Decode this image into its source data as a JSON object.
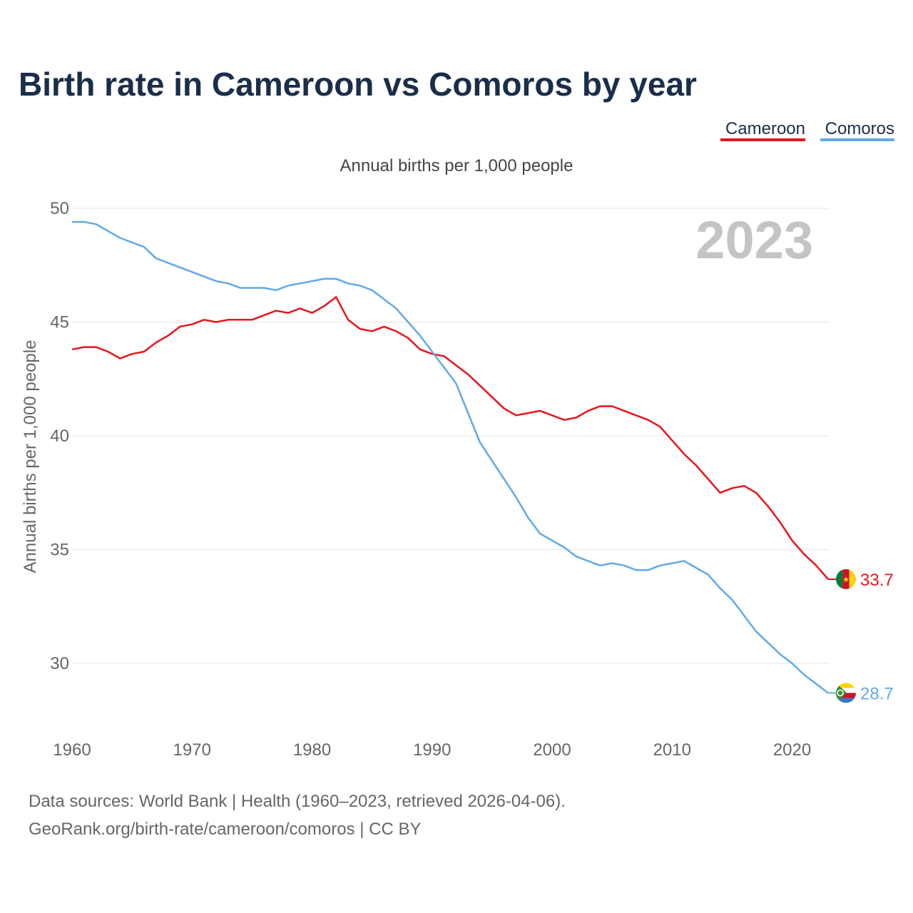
{
  "chart_data": {
    "type": "line",
    "title": "Birth rate in Cameroon vs Comoros by year",
    "subtitle": "Annual births per 1,000 people",
    "ylabel": "Annual births per 1,000 people",
    "xlabel": "",
    "year_label": "2023",
    "xlim": [
      1960,
      2023
    ],
    "ylim": [
      27.5,
      50
    ],
    "x_ticks": [
      "1960",
      "1970",
      "1980",
      "1990",
      "2000",
      "2010",
      "2020"
    ],
    "y_ticks": [
      "30",
      "35",
      "40",
      "45",
      "50"
    ],
    "grid": true,
    "legend_position": "top-right",
    "x": [
      1960,
      1961,
      1962,
      1963,
      1964,
      1965,
      1966,
      1967,
      1968,
      1969,
      1970,
      1971,
      1972,
      1973,
      1974,
      1975,
      1976,
      1977,
      1978,
      1979,
      1980,
      1981,
      1982,
      1983,
      1984,
      1985,
      1986,
      1987,
      1988,
      1989,
      1990,
      1991,
      1992,
      1993,
      1994,
      1995,
      1996,
      1997,
      1998,
      1999,
      2000,
      2001,
      2002,
      2003,
      2004,
      2005,
      2006,
      2007,
      2008,
      2009,
      2010,
      2011,
      2012,
      2013,
      2014,
      2015,
      2016,
      2017,
      2018,
      2019,
      2020,
      2021,
      2022,
      2023
    ],
    "series": [
      {
        "name": "Cameroon",
        "color": "#e8141c",
        "end_label": "33.7",
        "values": [
          43.8,
          43.9,
          43.9,
          43.7,
          43.4,
          43.6,
          43.7,
          44.1,
          44.4,
          44.8,
          44.9,
          45.1,
          45.0,
          45.1,
          45.1,
          45.1,
          45.3,
          45.5,
          45.4,
          45.6,
          45.4,
          45.7,
          46.1,
          45.1,
          44.7,
          44.6,
          44.8,
          44.6,
          44.3,
          43.8,
          43.6,
          43.5,
          43.1,
          42.7,
          42.2,
          41.7,
          41.2,
          40.9,
          41.0,
          41.1,
          40.9,
          40.7,
          40.8,
          41.1,
          41.3,
          41.3,
          41.1,
          40.9,
          40.7,
          40.4,
          39.8,
          39.2,
          38.7,
          38.1,
          37.5,
          37.7,
          37.8,
          37.5,
          36.9,
          36.2,
          35.4,
          34.8,
          34.3,
          33.7
        ]
      },
      {
        "name": "Comoros",
        "color": "#62a9e6",
        "end_label": "28.7",
        "values": [
          49.4,
          49.4,
          49.3,
          49.0,
          48.7,
          48.5,
          48.3,
          47.8,
          47.6,
          47.4,
          47.2,
          47.0,
          46.8,
          46.7,
          46.5,
          46.5,
          46.5,
          46.4,
          46.6,
          46.7,
          46.8,
          46.9,
          46.9,
          46.7,
          46.6,
          46.4,
          46.0,
          45.6,
          45.0,
          44.4,
          43.7,
          43.0,
          42.3,
          41.0,
          39.7,
          38.9,
          38.1,
          37.3,
          36.4,
          35.7,
          35.4,
          35.1,
          34.7,
          34.5,
          34.3,
          34.4,
          34.3,
          34.1,
          34.1,
          34.3,
          34.4,
          34.5,
          34.2,
          33.9,
          33.3,
          32.8,
          32.1,
          31.4,
          30.9,
          30.4,
          30.0,
          29.5,
          29.1,
          28.7
        ]
      }
    ],
    "source_line1": "Data sources: World Bank | Health (1960–2023, retrieved 2026-04-06).",
    "source_line2": "GeoRank.org/birth-rate/cameroon/comoros | CC BY"
  },
  "colors": {
    "title": "#1a2e4a",
    "axis_text": "#666666",
    "grid": "#e6e6e6",
    "year_watermark": "#c4c4c4"
  }
}
